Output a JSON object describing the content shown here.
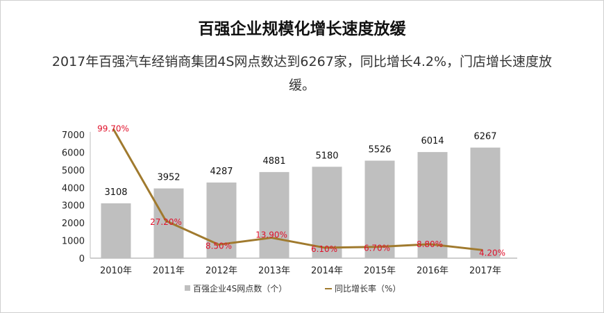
{
  "title": "百强企业规模化增长速度放缓",
  "subtitle": "2017年百强汽车经销商集团4S网点数达到6267家，同比增长4.2%，门店增长速度放缓。",
  "chart_data": {
    "type": "bar",
    "title": "百强企业规模化增长速度放缓",
    "categories": [
      "2010年",
      "2011年",
      "2012年",
      "2013年",
      "2014年",
      "2015年",
      "2016年",
      "2017年"
    ],
    "series": [
      {
        "name": "百强企业4S网点数（个）",
        "type": "bar",
        "color": "#bfbfbf",
        "values": [
          3108,
          3952,
          4287,
          4881,
          5180,
          5526,
          6014,
          6267
        ],
        "labels": [
          "3108",
          "3952",
          "4287",
          "4881",
          "5180",
          "5526",
          "6014",
          "6267"
        ]
      },
      {
        "name": "同比增长率（%）",
        "type": "line",
        "color": "#a07a2e",
        "values": [
          99.7,
          27.2,
          8.5,
          13.9,
          6.1,
          6.7,
          8.8,
          4.2
        ],
        "labels": [
          "99.70%",
          "27.20%",
          "8.50%",
          "13.90%",
          "6.10%",
          "6.70%",
          "8.80%",
          "4.20%"
        ]
      }
    ],
    "yticks": [
      "0",
      "1000",
      "2000",
      "3000",
      "4000",
      "5000",
      "6000",
      "7000"
    ],
    "ylim": [
      0,
      7000
    ],
    "xlabel": "",
    "ylabel": "",
    "grid": false,
    "legend_position": "bottom"
  }
}
